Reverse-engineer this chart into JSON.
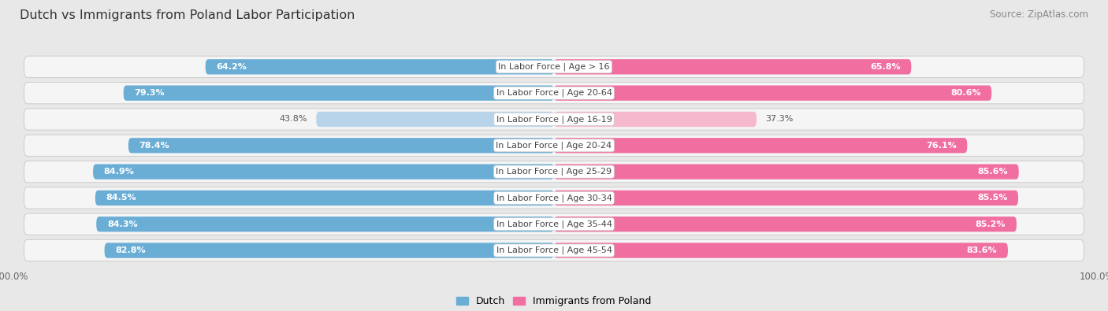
{
  "title": "Dutch vs Immigrants from Poland Labor Participation",
  "source": "Source: ZipAtlas.com",
  "categories": [
    "In Labor Force | Age > 16",
    "In Labor Force | Age 20-64",
    "In Labor Force | Age 16-19",
    "In Labor Force | Age 20-24",
    "In Labor Force | Age 25-29",
    "In Labor Force | Age 30-34",
    "In Labor Force | Age 35-44",
    "In Labor Force | Age 45-54"
  ],
  "dutch_values": [
    64.2,
    79.3,
    43.8,
    78.4,
    84.9,
    84.5,
    84.3,
    82.8
  ],
  "poland_values": [
    65.8,
    80.6,
    37.3,
    76.1,
    85.6,
    85.5,
    85.2,
    83.6
  ],
  "dutch_color": "#6aaed6",
  "dutch_light_color": "#b8d4ea",
  "poland_color": "#f06fa0",
  "poland_light_color": "#f5b8cc",
  "bg_color": "#e8e8e8",
  "row_bg_color": "#f5f5f5",
  "row_border_color": "#d0d0d0",
  "bar_height": 0.58,
  "label_fontsize": 8.0,
  "title_fontsize": 11.5,
  "value_fontsize": 8.0,
  "source_fontsize": 8.5
}
